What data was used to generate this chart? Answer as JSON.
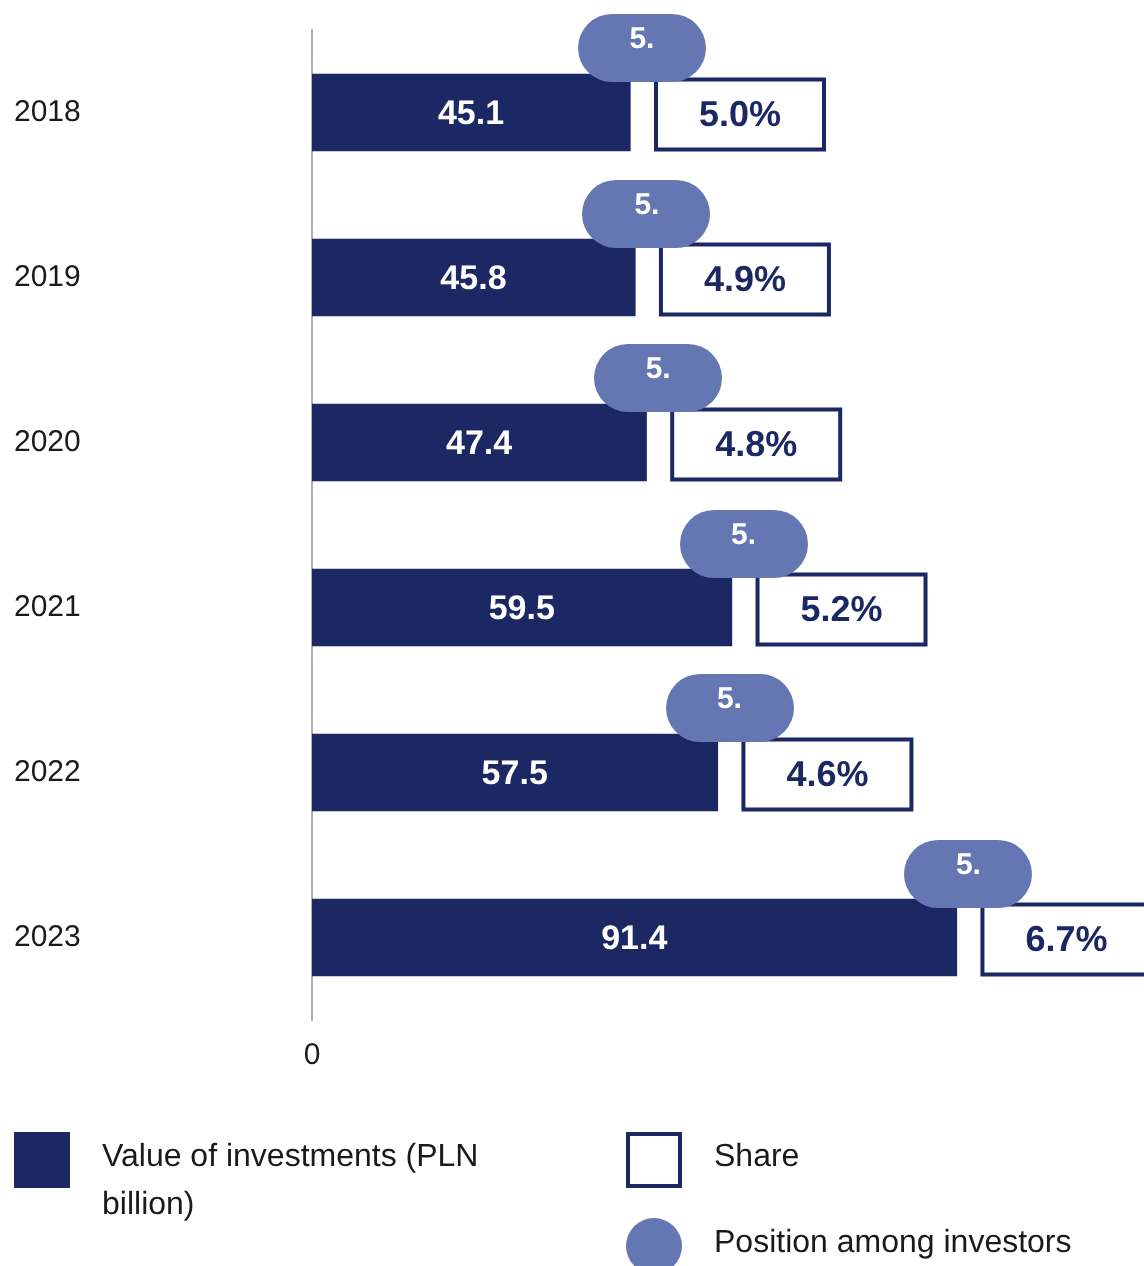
{
  "chart_data": {
    "type": "bar",
    "orientation": "horizontal",
    "categories": [
      "2018",
      "2019",
      "2020",
      "2021",
      "2022",
      "2023"
    ],
    "series": [
      {
        "name": "Value of investments (PLN billion)",
        "color": "#1b2864",
        "values": [
          45.1,
          45.8,
          47.4,
          59.5,
          57.5,
          91.4
        ]
      }
    ],
    "xlim": [
      0,
      118
    ],
    "grid": false,
    "data_labels": true,
    "legend": "bottom",
    "annotations": [
      {
        "text": "5.",
        "x": 45.1,
        "y": "2018"
      },
      {
        "text": "5.",
        "x": 45.8,
        "y": "2019"
      },
      {
        "text": "5.",
        "x": 47.4,
        "y": "2020"
      },
      {
        "text": "5.",
        "x": 59.5,
        "y": "2021"
      },
      {
        "text": "5.",
        "x": 57.5,
        "y": "2022"
      },
      {
        "text": "5.",
        "x": 91.4,
        "y": "2023"
      },
      {
        "text": "5.0%",
        "x": 45.1,
        "y": "2018"
      },
      {
        "text": "4.9%",
        "x": 45.8,
        "y": "2019"
      },
      {
        "text": "4.8%",
        "x": 47.4,
        "y": "2020"
      },
      {
        "text": "5.2%",
        "x": 59.5,
        "y": "2021"
      },
      {
        "text": "4.6%",
        "x": 57.5,
        "y": "2022"
      },
      {
        "text": "6.7%",
        "x": 91.4,
        "y": "2023"
      },
      "0",
      "Share",
      "Position among investors"
    ]
  }
}
